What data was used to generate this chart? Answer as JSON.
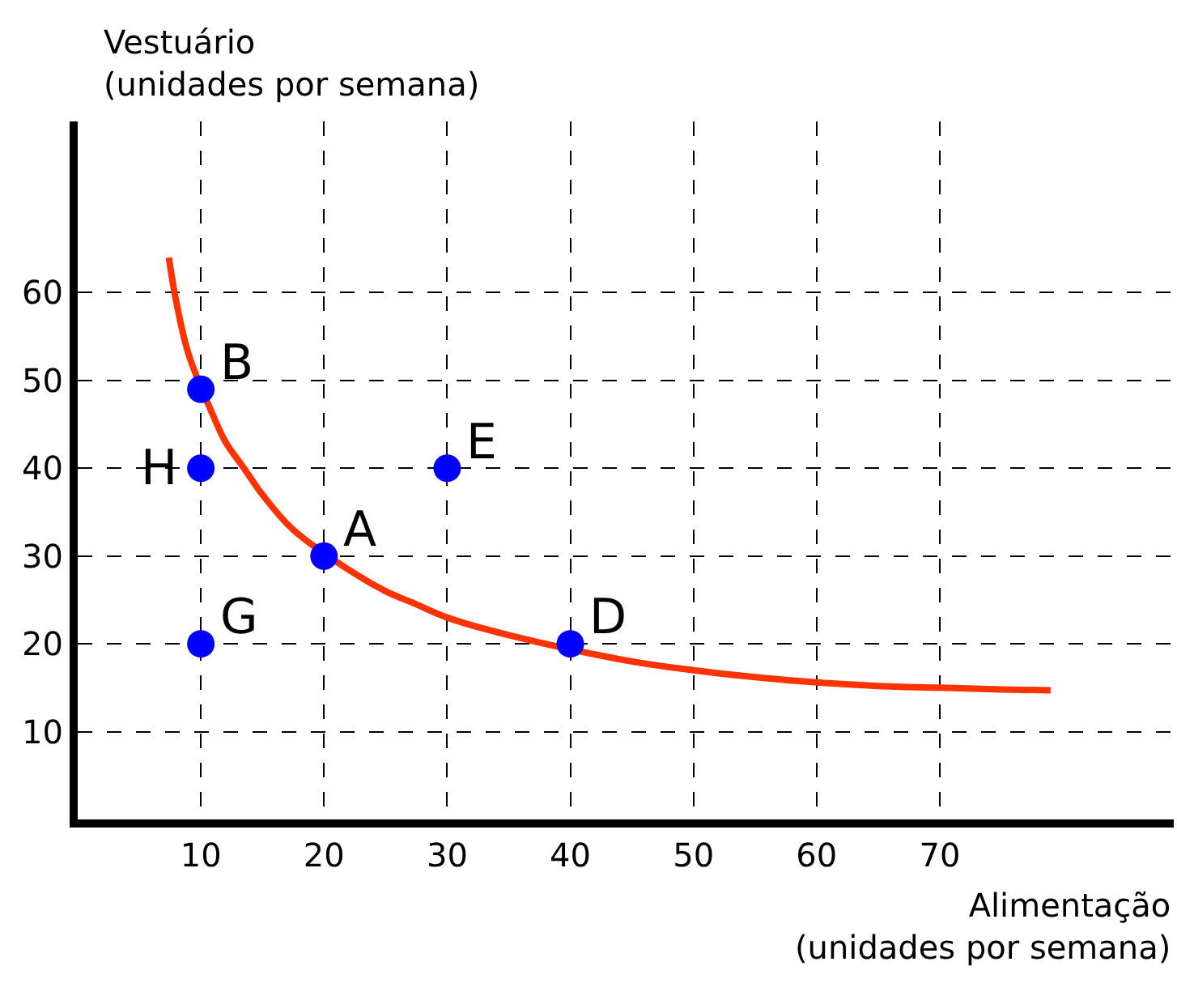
{
  "chart_data": {
    "type": "scatter",
    "xlabel": "Alimentação\n(unidades por semana)",
    "ylabel": "Vestuário\n(unidades por semana)",
    "xlim": [
      0,
      89
    ],
    "ylim": [
      0,
      79.5
    ],
    "xticks": [
      10,
      20,
      30,
      40,
      50,
      60,
      70
    ],
    "yticks": [
      10,
      20,
      30,
      40,
      50,
      60
    ],
    "grid": true,
    "marker": "circle",
    "series": [
      {
        "type": "line",
        "color": "#ff3300",
        "line_style": "solid",
        "marker": "none",
        "x": [
          7.4,
          8,
          9,
          11,
          12,
          13.5,
          15,
          17.5,
          22.5,
          25,
          27.5,
          30,
          35,
          45,
          50,
          55,
          60,
          65,
          70,
          75,
          79
        ],
        "values": [
          64,
          59,
          53,
          46,
          43,
          40,
          37,
          33,
          28,
          26,
          24.5,
          23,
          21,
          18,
          17,
          16.2,
          15.6,
          15.2,
          15,
          14.8,
          14.7
        ]
      },
      {
        "color": "#0000ff",
        "x": [
          20,
          10,
          40,
          30,
          10,
          10
        ],
        "values": [
          30,
          49,
          20,
          40,
          40,
          20
        ]
      }
    ],
    "annotations": [
      {
        "text": "A",
        "x": 20,
        "y": 30
      },
      {
        "text": "B",
        "x": 10,
        "y": 49
      },
      {
        "text": "D",
        "x": 40,
        "y": 20
      },
      {
        "text": "E",
        "x": 30,
        "y": 40
      },
      {
        "text": "H",
        "x": 10,
        "y": 40
      },
      {
        "text": "G",
        "x": 10,
        "y": 20
      }
    ]
  }
}
